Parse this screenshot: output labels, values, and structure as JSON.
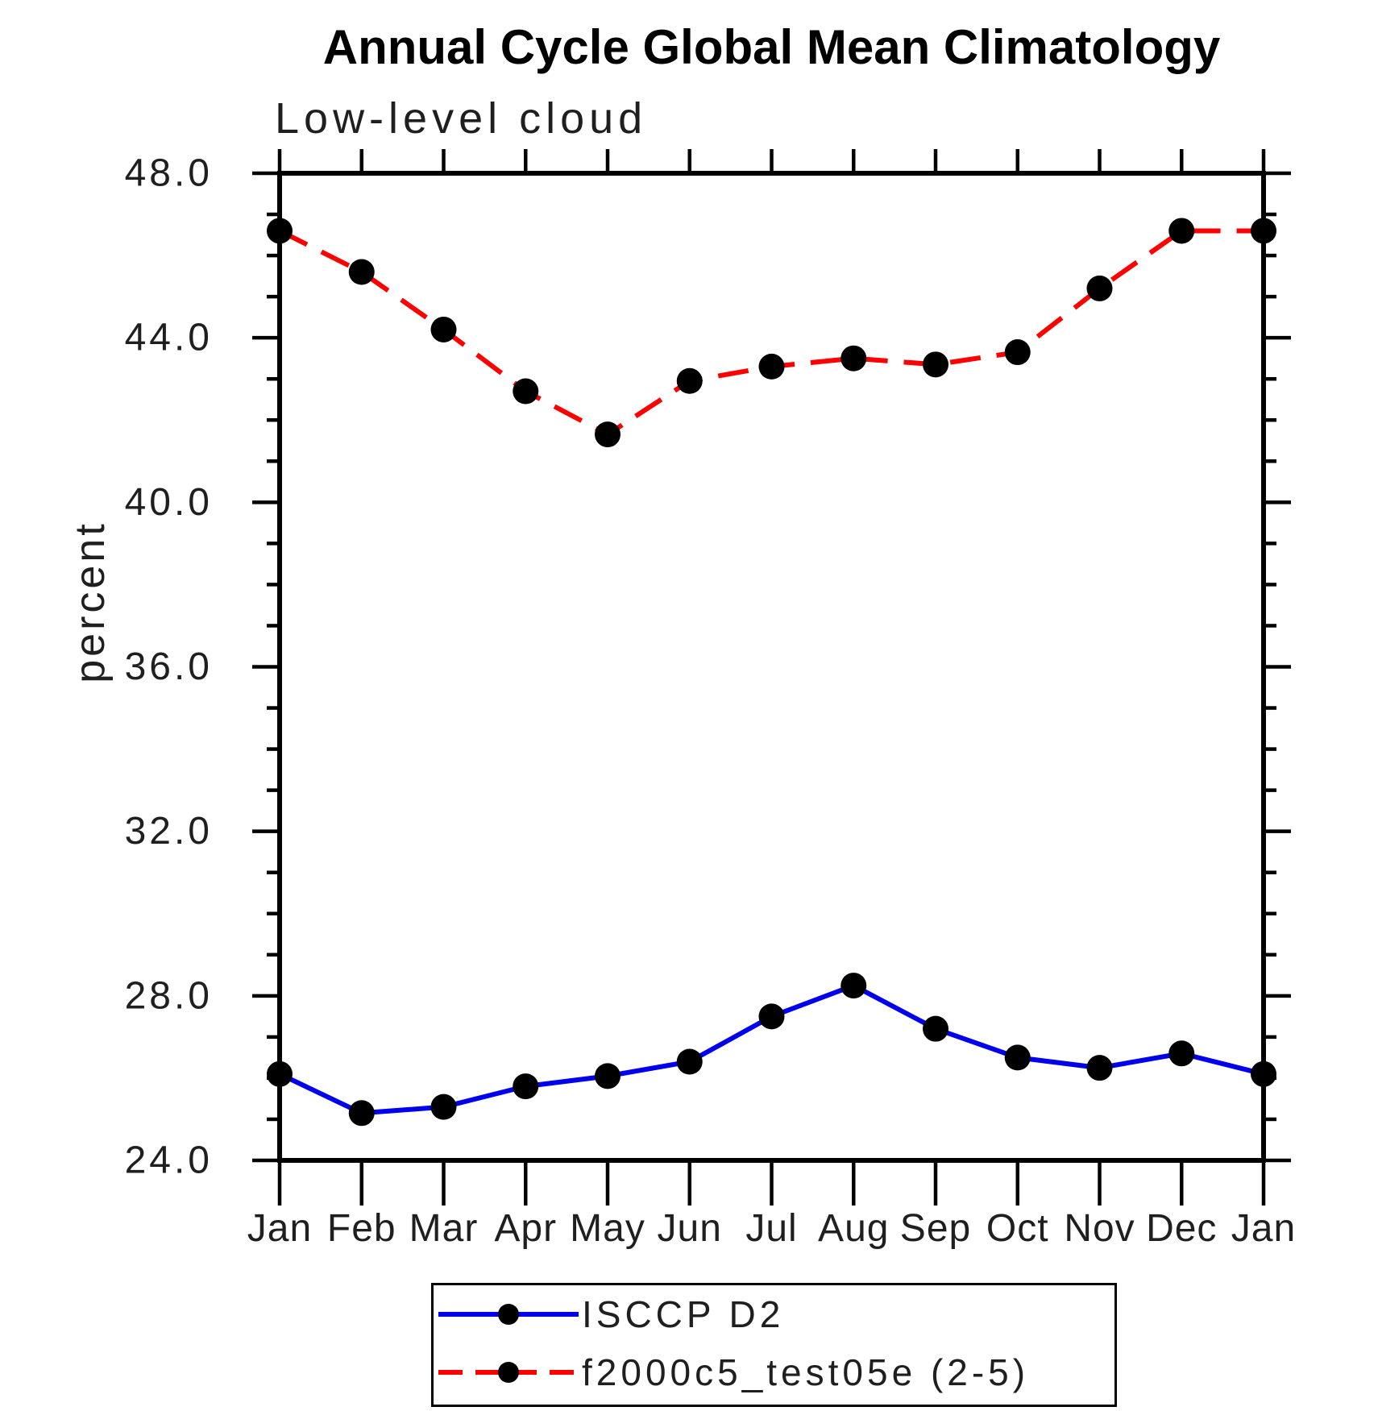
{
  "title": "Annual Cycle Global Mean Climatology",
  "subtitle": "Low-level cloud",
  "ylabel": "percent",
  "chart_data": {
    "type": "line",
    "categories": [
      "Jan",
      "Feb",
      "Mar",
      "Apr",
      "May",
      "Jun",
      "Jul",
      "Aug",
      "Sep",
      "Oct",
      "Nov",
      "Dec",
      "Jan"
    ],
    "series": [
      {
        "name": "ISCCP D2",
        "color": "#0000ee",
        "line_style": "solid",
        "marker": "circle",
        "marker_color": "#000000",
        "values": [
          26.1,
          25.15,
          25.3,
          25.8,
          26.05,
          26.4,
          27.5,
          28.25,
          27.2,
          26.5,
          26.25,
          26.6,
          26.1
        ]
      },
      {
        "name": "f2000c5_test05e (2-5)",
        "color": "#ff0000",
        "line_style": "dashed",
        "marker": "circle",
        "marker_color": "#000000",
        "values": [
          46.6,
          45.6,
          44.2,
          42.7,
          41.65,
          42.95,
          43.3,
          43.5,
          43.35,
          43.65,
          45.2,
          46.6,
          46.6
        ]
      }
    ],
    "ylim": [
      24.0,
      48.0
    ],
    "ytick_major": [
      24.0,
      28.0,
      32.0,
      36.0,
      40.0,
      44.0,
      48.0
    ],
    "ytick_labels": [
      "24.0",
      "28.0",
      "32.0",
      "36.0",
      "40.0",
      "44.0",
      "48.0"
    ],
    "ytick_minor_step": 1.0,
    "grid": false,
    "legend_position": "bottom"
  },
  "legend": {
    "entries": [
      {
        "label": "ISCCP D2"
      },
      {
        "label": "f2000c5_test05e (2-5)"
      }
    ]
  }
}
